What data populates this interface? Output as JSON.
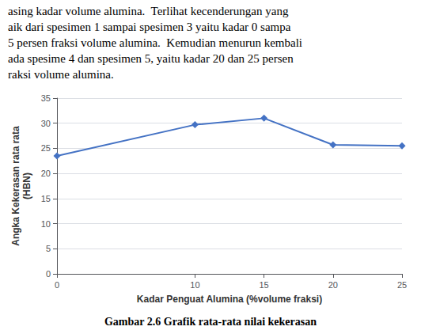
{
  "chart_data": {
    "type": "line",
    "title": "Gambar 2.6 Grafik rata-rata nilai kekerasan",
    "annotations": [
      "asing kadar volume alumina.  Terlihat kecenderungan yang",
      "aik dari spesimen 1 sampai spesimen 3 yaitu kadar 0 sampa",
      "5 persen fraksi volume alumina.  Kemudian menurun kembali",
      "ada spesime 4 dan spesimen 5, yaitu kadar 20 dan 25 persen",
      "raksi volume alumina."
    ],
    "xlabel": "Kadar Penguat Alumina (%volume fraksi)",
    "ylabel": "Angka Kekerasan rata rata\n(HBN)",
    "x": [
      0,
      10,
      15,
      20,
      25
    ],
    "values": [
      23.5,
      29.7,
      31.0,
      25.7,
      25.5
    ],
    "xlim": [
      0,
      25
    ],
    "xticks": [
      0,
      10,
      15,
      20,
      25
    ],
    "ylim": [
      0,
      35
    ],
    "yticks": [
      0,
      5,
      10,
      15,
      20,
      25,
      30,
      35
    ],
    "color": "#4472C4",
    "marker": "diamond",
    "grid": true
  }
}
